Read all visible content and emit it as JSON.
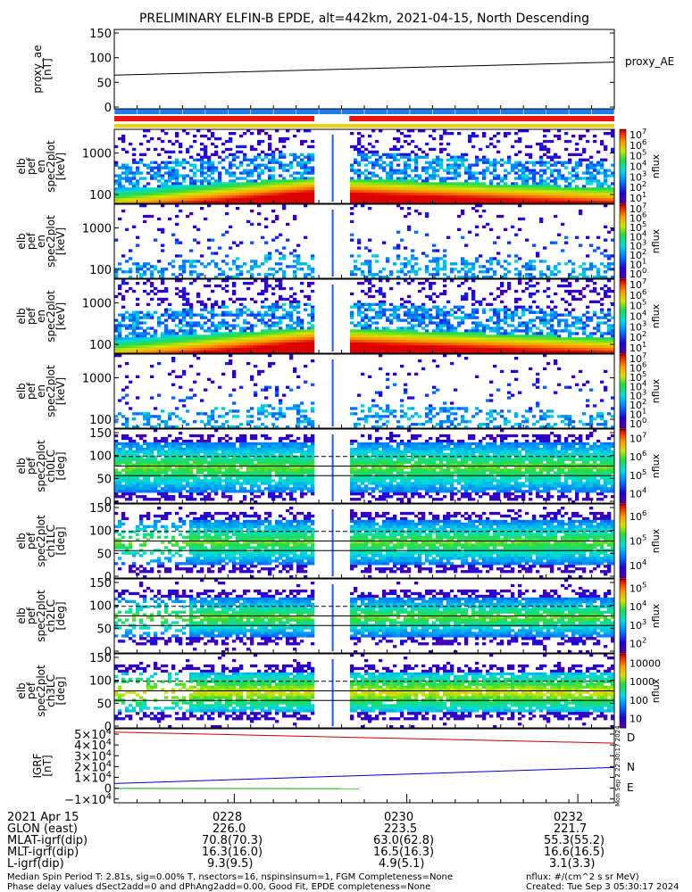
{
  "title": "PRELIMINARY ELFIN-B EPDE, alt=442km, 2021-04-15, North Descending",
  "chart_data": {
    "type": "heatmap",
    "panels": [
      {
        "id": "proxy_ae",
        "kind": "line",
        "ylabel": [
          "proxy_ae",
          "[nT]"
        ],
        "ylim": [
          -10,
          155
        ],
        "yticks": [
          "150",
          "100",
          "50",
          "0"
        ],
        "legend": "proxy_AE",
        "series": [
          {
            "name": "proxy_AE",
            "x": [
              "0226.3",
              "0232.9"
            ],
            "values": [
              60,
              87
            ],
            "color": "#000000"
          }
        ]
      },
      {
        "id": "en_all",
        "kind": "energy",
        "ylabel": [
          "elb",
          "pef",
          "en",
          "spec2plot",
          "[keV]"
        ],
        "ylim": [
          65,
          7000
        ],
        "log": true,
        "yticks": [
          "1000",
          "100"
        ],
        "cb_ticks": [
          "10^1",
          "10^2",
          "10^3",
          "10^4",
          "10^5",
          "10^6",
          "10^7"
        ],
        "cb_label": "nflux"
      },
      {
        "id": "en_perp",
        "kind": "energy",
        "ylabel": [
          "elb",
          "pef",
          "en",
          "spec2plot",
          "[keV]"
        ],
        "ylim": [
          65,
          7000
        ],
        "log": true,
        "yticks": [
          "1000",
          "100"
        ],
        "cb_ticks": [
          "10^0",
          "10^1",
          "10^2",
          "10^3",
          "10^4",
          "10^5",
          "10^6",
          "10^7"
        ],
        "cb_label": "nflux"
      },
      {
        "id": "en_para",
        "kind": "energy",
        "ylabel": [
          "elb",
          "pef",
          "en",
          "spec2plot",
          "[keV]"
        ],
        "ylim": [
          65,
          7000
        ],
        "log": true,
        "yticks": [
          "1000",
          "100"
        ],
        "cb_ticks": [
          "10^1",
          "10^2",
          "10^3",
          "10^4",
          "10^5",
          "10^6",
          "10^7"
        ],
        "cb_label": "nflux"
      },
      {
        "id": "en_anti",
        "kind": "energy",
        "ylabel": [
          "elb",
          "pef",
          "en",
          "spec2plot",
          "[keV]"
        ],
        "ylim": [
          65,
          7000
        ],
        "log": true,
        "yticks": [
          "1000",
          "100"
        ],
        "cb_ticks": [
          "10^0",
          "10^1",
          "10^2",
          "10^3",
          "10^4",
          "10^5",
          "10^6",
          "10^7"
        ],
        "cb_label": "nflux"
      },
      {
        "id": "pa_ch0",
        "kind": "pa",
        "ylabel": [
          "elb",
          "pef",
          "spec2plot",
          "ch0LC",
          "[deg]"
        ],
        "ylim": [
          0,
          180
        ],
        "yticks": [
          "150",
          "100",
          "50",
          "0"
        ],
        "cb_ticks": [
          "10^4",
          "10^5",
          "10^6",
          "10^7"
        ],
        "cb_label": "nflux"
      },
      {
        "id": "pa_ch1",
        "kind": "pa",
        "ylabel": [
          "elb",
          "pef",
          "spec2plot",
          "ch1LC",
          "[deg]"
        ],
        "ylim": [
          0,
          180
        ],
        "yticks": [
          "150",
          "100",
          "50",
          "0"
        ],
        "cb_ticks": [
          "10^4",
          "10^5",
          "10^6"
        ],
        "cb_label": "nflux"
      },
      {
        "id": "pa_ch2",
        "kind": "pa",
        "ylabel": [
          "elb",
          "pef",
          "spec2plot",
          "ch2LC",
          "[deg]"
        ],
        "ylim": [
          0,
          180
        ],
        "yticks": [
          "150",
          "100",
          "50",
          "0"
        ],
        "cb_ticks": [
          "10^2",
          "10^3",
          "10^4",
          "10^5"
        ],
        "cb_label": "nflux"
      },
      {
        "id": "pa_ch3",
        "kind": "pa",
        "ylabel": [
          "elb",
          "pef",
          "spec2plot",
          "ch3LC",
          "[deg]"
        ],
        "ylim": [
          0,
          180
        ],
        "yticks": [
          "150",
          "100",
          "50",
          "0"
        ],
        "cb_ticks": [
          "10",
          "100",
          "1000",
          "10000"
        ],
        "cb_label": "nflux"
      },
      {
        "id": "igrf",
        "kind": "line",
        "ylabel": [
          "IGRF",
          "[nT]"
        ],
        "ylim": [
          -15000,
          52000
        ],
        "yticks": [
          "5×10^4",
          "4×10^4",
          "3×10^4",
          "2×10^4",
          "1×10^4",
          "0",
          "−1×10^4"
        ],
        "series": [
          {
            "name": "D",
            "x": [
              "0226.3",
              "0232.9"
            ],
            "values": [
              49000,
              39000
            ],
            "color": "#cc0000"
          },
          {
            "name": "N",
            "x": [
              "0226.3",
              "0232.9"
            ],
            "values": [
              2500,
              17000
            ],
            "color": "#0000cc"
          },
          {
            "name": "E",
            "x": [
              "0226.3",
              "0229.0"
            ],
            "values": [
              -2000,
              -2200
            ],
            "color": "#00aa00"
          }
        ]
      }
    ],
    "x_ticks": [
      "0228",
      "0230",
      "0232"
    ],
    "status_bars": [
      {
        "name": "blue",
        "color": "#1e7de8",
        "segments": [
          [
            0,
            1
          ]
        ]
      },
      {
        "name": "red",
        "color": "#ee1111",
        "segments": [
          [
            0,
            0.4
          ],
          [
            0.47,
            1
          ]
        ]
      },
      {
        "name": "yellow",
        "color": "#f5d200",
        "segments": [
          [
            0,
            1
          ]
        ]
      }
    ],
    "colors": {
      "axis": "#000000"
    }
  },
  "stamp": "Mon Sep 2 22:30:17 2024",
  "footer": {
    "date_label": "2021 Apr 15",
    "row_labels": [
      "GLON (east)",
      "MLAT-igrf(dip)",
      "MLT-igrf(dip)",
      "L-igrf(dip)"
    ],
    "times": [
      "0228",
      "0230",
      "0232"
    ],
    "rows": [
      [
        "226.0",
        "223.5",
        "221.7"
      ],
      [
        "70.8(70.3)",
        "63.0(62.8)",
        "55.3(55.2)"
      ],
      [
        "16.3(16.0)",
        "16.5(16.3)",
        "16.6(16.5)"
      ],
      [
        "9.3(9.5)",
        "4.9(5.1)",
        "3.1(3.3)"
      ]
    ],
    "note1": "Median Spin Period T: 2.81s, sig=0.00% T, nsectors=16, nspinsinsum=1, FGM Completeness=None",
    "note2": "Phase delay values dSect2add=0 and dPhAng2add=0.00, Good Fit, EPDE completeness=None",
    "units": "nflux: #/(cm^2 s sr MeV)",
    "created": "Created: Tue Sep  3 05:30:17 2024"
  }
}
